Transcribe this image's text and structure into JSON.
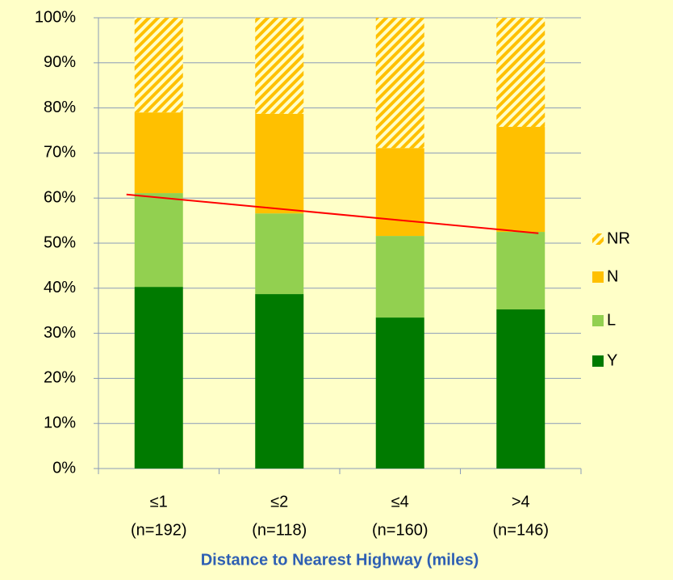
{
  "chart_data": {
    "type": "stacked_bar",
    "categories": [
      "≤1",
      "≤2",
      "≤4",
      ">4"
    ],
    "category_sublabels": [
      "(n=192)",
      "(n=118)",
      "(n=160)",
      "(n=146)"
    ],
    "x_label": "Distance to Nearest Highway (miles)",
    "series": [
      {
        "name": "Y",
        "color": "#007a00",
        "values": [
          40.3,
          38.7,
          33.5,
          35.3
        ]
      },
      {
        "name": "L",
        "color": "#92d050",
        "values": [
          20.8,
          17.9,
          18.1,
          17.2
        ]
      },
      {
        "name": "N",
        "color": "#ffc000",
        "values": [
          17.9,
          22.1,
          19.5,
          23.3
        ]
      },
      {
        "name": "NR",
        "color": "#ffc000",
        "pattern": "hatch",
        "values": [
          21.0,
          21.3,
          28.9,
          24.2
        ]
      }
    ],
    "trend_line": {
      "color": "#ff0000",
      "values": [
        60.8,
        52.2
      ]
    },
    "ylim": [
      0,
      100
    ],
    "yticks": [
      {
        "value": 0,
        "label": "0%"
      },
      {
        "value": 10,
        "label": "10%"
      },
      {
        "value": 20,
        "label": "20%"
      },
      {
        "value": 30,
        "label": "30%"
      },
      {
        "value": 40,
        "label": "40%"
      },
      {
        "value": 50,
        "label": "50%"
      },
      {
        "value": 60,
        "label": "60%"
      },
      {
        "value": 70,
        "label": "70%"
      },
      {
        "value": 80,
        "label": "80%"
      },
      {
        "value": 90,
        "label": "90%"
      },
      {
        "value": 100,
        "label": "100%"
      }
    ],
    "grid": true,
    "legend": "right"
  }
}
